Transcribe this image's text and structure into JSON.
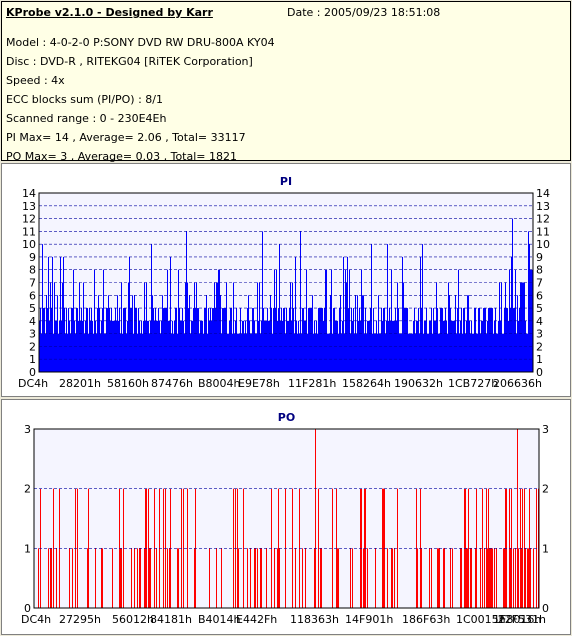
{
  "report": {
    "title": "KProbe v2.1.0 - Designed by Karr",
    "date": "Date : 2005/09/23 18:51:08",
    "lines": [
      "Model : 4-0-2-0 P:SONY    DVD RW DRU-800A  KY04",
      "Disc : DVD-R , RITEKG04 [RiTEK Corporation]",
      "Speed : 4x",
      "ECC blocks sum (PI/PO) : 8/1",
      "Scanned range : 0 - 230E4Eh",
      "PI Max= 14 , Average= 2.06 , Total= 33117",
      "PO Max= 3 , Average= 0.03 , Total= 1821"
    ]
  },
  "chart_data": [
    {
      "type": "bar",
      "title": "PI",
      "ylim": [
        0,
        14
      ],
      "yticks": [
        "0",
        "1",
        "2",
        "3",
        "4",
        "5",
        "6",
        "7",
        "8",
        "9",
        "10",
        "11",
        "12",
        "13",
        "14"
      ],
      "x_tick_labels": [
        "DC4h",
        "28201h",
        "58160h",
        "87476h",
        "B8004h",
        "E9E78h",
        "11F281h",
        "158264h",
        "190632h",
        "1CB727h",
        "206636h"
      ],
      "x_range": [
        "0",
        "230E4Eh"
      ],
      "color": "#0000ff",
      "grid": true,
      "max": 14,
      "average": 2.06,
      "total": 33117
    },
    {
      "type": "bar",
      "title": "PO",
      "ylim": [
        0,
        3
      ],
      "yticks": [
        "0",
        "1",
        "2",
        "3"
      ],
      "x_tick_labels": [
        "DC4h",
        "27295h",
        "56012h",
        "84181h",
        "B4014h",
        "E442Fh",
        "118363h",
        "14F901h",
        "186F63h",
        "1C0015h",
        "1F8016h",
        "22F531h"
      ],
      "x_range": [
        "0",
        "230E4Eh"
      ],
      "color": "#ff0000",
      "grid": true,
      "max": 3,
      "average": 0.03,
      "total": 1821
    }
  ]
}
